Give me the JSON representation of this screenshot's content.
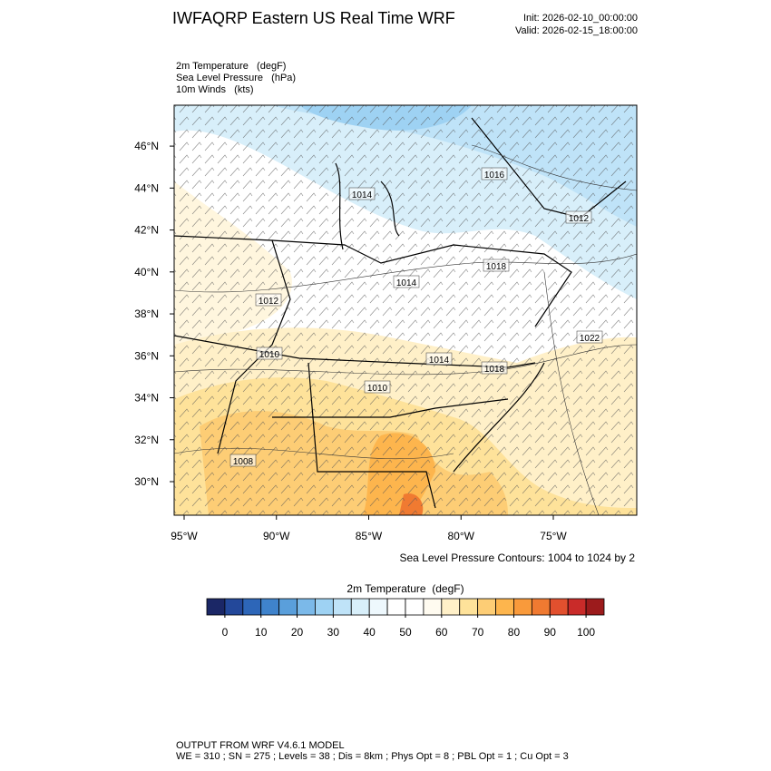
{
  "header": {
    "title": "IWFAQRP Eastern US Real Time WRF",
    "init": "Init: 2026-02-10_00:00:00",
    "valid": "Valid: 2026-02-15_18:00:00"
  },
  "fields": [
    "2m Temperature   (degF)",
    "Sea Level Pressure   (hPa)",
    "10m Winds   (kts)"
  ],
  "map": {
    "xlim": [
      -95.54,
      -70.48
    ],
    "ylim": [
      28.4,
      47.95
    ],
    "xticks": [
      {
        "value": -95,
        "label": "95°W"
      },
      {
        "value": -90,
        "label": "90°W"
      },
      {
        "value": -85,
        "label": "85°W"
      },
      {
        "value": -80,
        "label": "80°W"
      },
      {
        "value": -75,
        "label": "75°W"
      }
    ],
    "yticks": [
      {
        "value": 30,
        "label": "30°N"
      },
      {
        "value": 32,
        "label": "32°N"
      },
      {
        "value": 34,
        "label": "34°N"
      },
      {
        "value": 36,
        "label": "36°N"
      },
      {
        "value": 38,
        "label": "38°N"
      },
      {
        "value": 40,
        "label": "40°N"
      },
      {
        "value": 42,
        "label": "42°N"
      },
      {
        "value": 44,
        "label": "44°N"
      },
      {
        "value": 46,
        "label": "46°N"
      }
    ],
    "contour_labels": [
      "1016",
      "1014",
      "1012",
      "1018",
      "1014",
      "1012",
      "1010",
      "1014",
      "1018",
      "1010",
      "1022",
      "1008"
    ],
    "contour_note": "Sea Level Pressure Contours: 1004 to 1024 by 2"
  },
  "colorbar": {
    "title": "2m Temperature  (degF)",
    "lim": [
      -5,
      105
    ],
    "colors": [
      "#1b2766",
      "#23489a",
      "#2d66b8",
      "#3f83cc",
      "#5a9fdb",
      "#7bb9e9",
      "#9ed2f3",
      "#bfe3f8",
      "#d8effa",
      "#eef8fd",
      "#ffffff",
      "#ffffff",
      "#fffbf0",
      "#fff0c8",
      "#fee29a",
      "#fdcd75",
      "#fdb54d",
      "#f99a3b",
      "#f07a31",
      "#e2502e",
      "#c92b29",
      "#9c1b1c"
    ],
    "ticks": [
      0,
      10,
      20,
      30,
      40,
      50,
      60,
      70,
      80,
      90,
      100
    ]
  },
  "footer": [
    "OUTPUT FROM WRF V4.6.1 MODEL",
    "WE = 310 ; SN = 275 ; Levels = 38 ; Dis = 8km ; Phys Opt = 8 ; PBL Opt = 1 ; Cu Opt = 3"
  ]
}
